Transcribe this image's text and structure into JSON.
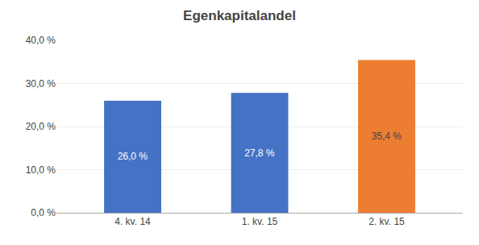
{
  "chart_data": {
    "type": "bar",
    "title": "Egenkapitalandel",
    "categories": [
      "4. kv. 14",
      "1. kv. 15",
      "2. kv. 15"
    ],
    "values": [
      26.0,
      27.8,
      35.4
    ],
    "value_labels": [
      "26,0 %",
      "27,8 %",
      "35,4 %"
    ],
    "data_labels": true,
    "colors": [
      "#4472C4",
      "#4472C4",
      "#ED7D31"
    ],
    "ylim": [
      0,
      40
    ],
    "yticks": [
      {
        "value": 0,
        "label": "0,0 %"
      },
      {
        "value": 10,
        "label": "10,0 %"
      },
      {
        "value": 20,
        "label": "20,0 %"
      },
      {
        "value": 30,
        "label": "30,0 %"
      },
      {
        "value": 40,
        "label": "40,0 %"
      }
    ],
    "grid": true
  }
}
